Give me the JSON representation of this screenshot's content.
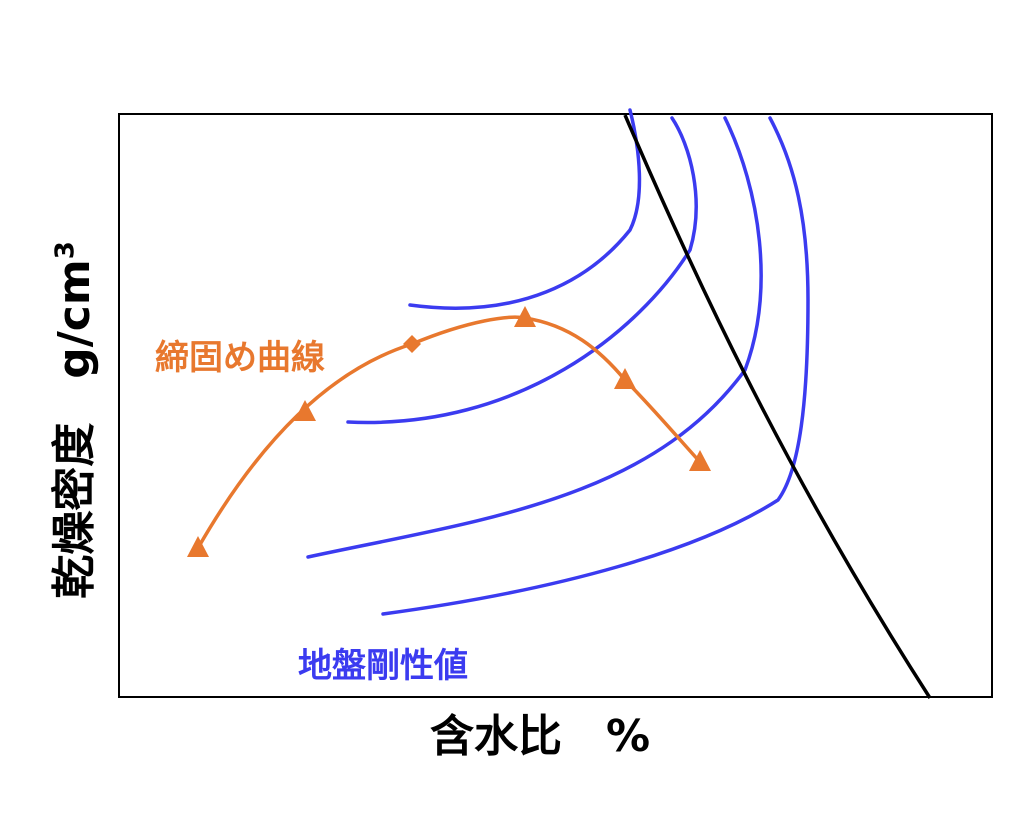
{
  "diagram": {
    "x_axis_label": "含水比　%",
    "y_axis_label": "乾燥密度　g/cm",
    "y_axis_unit_superscript": "3",
    "compaction_curve": {
      "label": "締固め曲線",
      "color": "#e8782e",
      "points": [
        {
          "marker": "triangle"
        },
        {
          "marker": "triangle"
        },
        {
          "marker": "diamond"
        },
        {
          "marker": "triangle"
        },
        {
          "marker": "triangle"
        },
        {
          "marker": "triangle"
        }
      ]
    },
    "stiffness_contours": {
      "label": "地盤剛性値",
      "color": "#3b3bf0",
      "count": 5
    },
    "saturation_line": {
      "color": "#000000"
    }
  }
}
